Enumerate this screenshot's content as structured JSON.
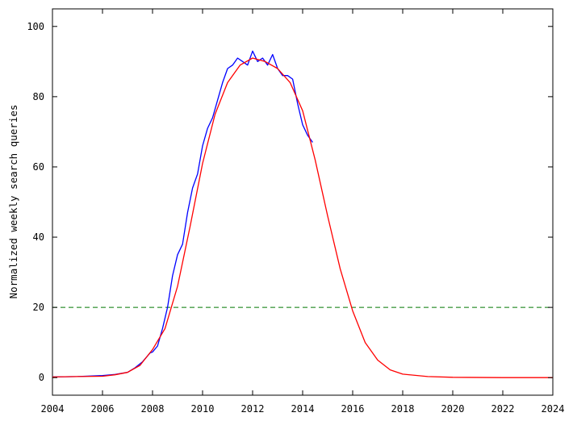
{
  "chart_data": {
    "type": "line",
    "title": "",
    "xlabel": "",
    "ylabel": "Normalized weekly search queries",
    "xlim": [
      2004,
      2024
    ],
    "ylim": [
      -5,
      105
    ],
    "x_ticks": [
      2004,
      2006,
      2008,
      2010,
      2012,
      2014,
      2016,
      2018,
      2020,
      2022,
      2024
    ],
    "x_tick_labels": [
      "2004",
      "2006",
      "2008",
      "2010",
      "2012",
      "2014",
      "2016",
      "2018",
      "2020",
      "2022",
      "2024"
    ],
    "y_ticks": [
      0,
      20,
      40,
      60,
      80,
      100
    ],
    "y_tick_labels": [
      "0",
      "20",
      "40",
      "60",
      "80",
      "100"
    ],
    "grid": false,
    "legend": "none",
    "series": [
      {
        "color": "#0000ff",
        "style": "solid",
        "x": [
          2004.0,
          2005.0,
          2006.0,
          2006.5,
          2007.0,
          2007.3,
          2007.6,
          2007.9,
          2008.0,
          2008.2,
          2008.4,
          2008.6,
          2008.8,
          2009.0,
          2009.2,
          2009.4,
          2009.6,
          2009.8,
          2010.0,
          2010.2,
          2010.4,
          2010.6,
          2010.8,
          2011.0,
          2011.2,
          2011.4,
          2011.6,
          2011.8,
          2012.0,
          2012.2,
          2012.4,
          2012.6,
          2012.8,
          2013.0,
          2013.2,
          2013.4,
          2013.6,
          2013.8,
          2014.0,
          2014.2,
          2014.4
        ],
        "y": [
          0.2,
          0.3,
          0.6,
          0.9,
          1.5,
          2.8,
          4.5,
          7.0,
          7.3,
          9.0,
          14.0,
          20.0,
          29.0,
          35.0,
          38.0,
          47.0,
          54.0,
          58.0,
          66.0,
          71.0,
          74.0,
          79.0,
          84.0,
          88.0,
          89.0,
          91.0,
          90.0,
          89.0,
          93.0,
          90.0,
          91.0,
          89.0,
          92.0,
          88.0,
          86.0,
          86.0,
          85.0,
          78.0,
          72.0,
          69.0,
          67.0
        ]
      },
      {
        "color": "#ff0000",
        "style": "solid",
        "x": [
          2004.0,
          2005.0,
          2006.0,
          2006.5,
          2007.0,
          2007.5,
          2008.0,
          2008.5,
          2009.0,
          2009.5,
          2010.0,
          2010.5,
          2011.0,
          2011.5,
          2012.0,
          2012.5,
          2013.0,
          2013.5,
          2014.0,
          2014.5,
          2015.0,
          2015.5,
          2016.0,
          2016.5,
          2017.0,
          2017.5,
          2018.0,
          2019.0,
          2020.0,
          2022.0,
          2024.0
        ],
        "y": [
          0.2,
          0.3,
          0.4,
          0.8,
          1.5,
          3.5,
          8.0,
          14.0,
          26.0,
          43.0,
          61.0,
          75.0,
          84.0,
          89.0,
          91.0,
          90.0,
          88.0,
          84.0,
          76.0,
          62.0,
          46.0,
          31.0,
          19.0,
          10.0,
          5.0,
          2.2,
          1.0,
          0.3,
          0.1,
          0.0,
          0.0
        ]
      }
    ],
    "reference_lines": [
      {
        "y": 20,
        "color": "#007700",
        "style": "dashed"
      }
    ]
  }
}
